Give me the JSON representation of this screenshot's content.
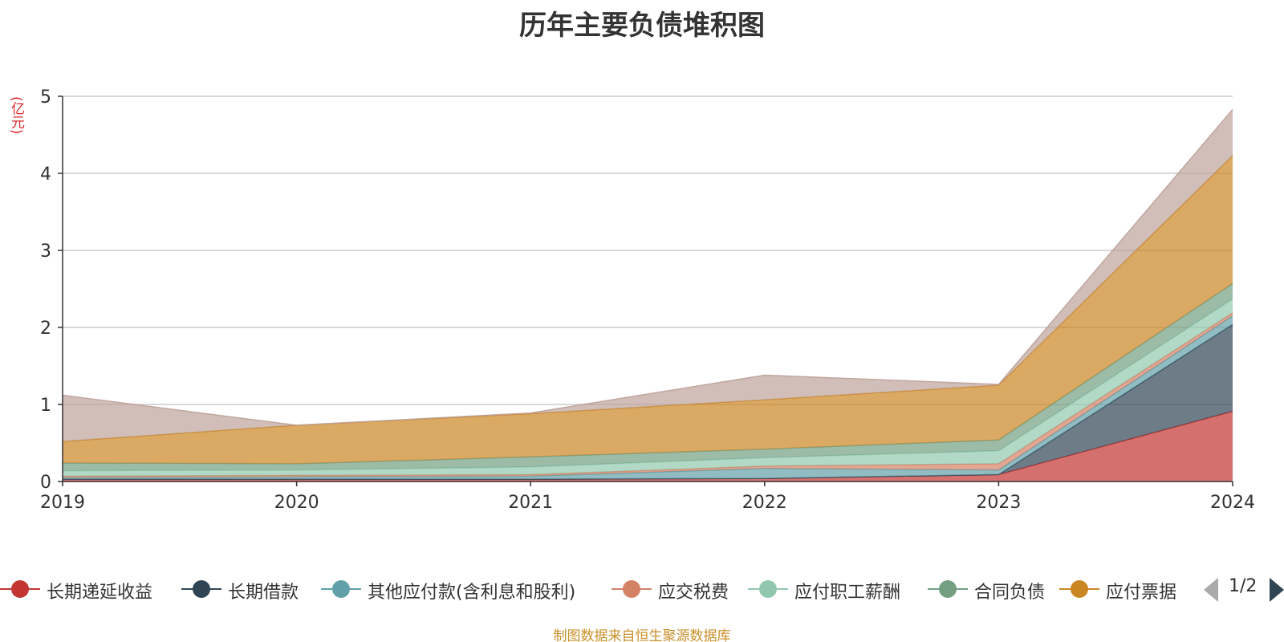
{
  "chart_data": {
    "type": "area",
    "stacked": true,
    "title": "历年主要负债堆积图",
    "unit": "(亿元)",
    "x": [
      "2019",
      "2020",
      "2021",
      "2022",
      "2023",
      "2024"
    ],
    "ylim": [
      0,
      5
    ],
    "yticks": [
      "0",
      "1",
      "2",
      "3",
      "4",
      "5"
    ],
    "grid": true,
    "legend_position": "bottom",
    "series": [
      {
        "name": "长期递延收益",
        "color": "#c23531",
        "values": [
          0.03,
          0.03,
          0.03,
          0.04,
          0.09,
          0.91
        ]
      },
      {
        "name": "长期借款",
        "color": "#2f4554",
        "values": [
          0,
          0,
          0,
          0,
          0,
          1.13
        ]
      },
      {
        "name": "其他应付款(含利息和股利)",
        "color": "#61a0a8",
        "values": [
          0.02,
          0.03,
          0.04,
          0.13,
          0.06,
          0.11
        ]
      },
      {
        "name": "应交税费",
        "color": "#d48265",
        "values": [
          0.02,
          0.02,
          0.02,
          0.03,
          0.08,
          0.04
        ]
      },
      {
        "name": "应付职工薪酬",
        "color": "#91c7ae",
        "values": [
          0.07,
          0.07,
          0.1,
          0.11,
          0.17,
          0.18
        ]
      },
      {
        "name": "合同负债",
        "color": "#749f83",
        "values": [
          0.1,
          0.08,
          0.13,
          0.11,
          0.14,
          0.2
        ]
      },
      {
        "name": "应付票据",
        "color": "#ca8622",
        "values": [
          0.28,
          0.5,
          0.56,
          0.64,
          0.71,
          1.66
        ]
      },
      {
        "name": "",
        "color": "#bda29a",
        "values": [
          0.6,
          0.0,
          0.01,
          0.32,
          0.01,
          0.6
        ]
      }
    ]
  },
  "legend": {
    "visible_items": 7,
    "page": "1/2"
  },
  "footer": {
    "source": "制图数据来自恒生聚源数据库"
  }
}
